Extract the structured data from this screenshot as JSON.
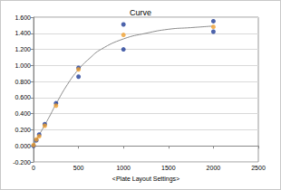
{
  "chart_data": {
    "type": "scatter",
    "title": "Curve",
    "x_label": "<Plate Layout Settings>",
    "xlim": [
      0,
      2500
    ],
    "xticks": [
      0,
      500,
      1000,
      1500,
      2000,
      2500
    ],
    "ylim": [
      -0.2,
      1.6
    ],
    "yticks": [
      {
        "value": -0.2,
        "label": "-0.200"
      },
      {
        "value": 0,
        "label": "0.000"
      },
      {
        "value": 0.2,
        "label": "0.200"
      },
      {
        "value": 0.4,
        "label": "0.400"
      },
      {
        "value": 0.6,
        "label": "0.600"
      },
      {
        "value": 0.8,
        "label": "0.800"
      },
      {
        "value": 1.0,
        "label": "1.000"
      },
      {
        "value": 1.2,
        "label": "1.200"
      },
      {
        "value": 1.4,
        "label": "1.400"
      },
      {
        "value": 1.6,
        "label": "1.600"
      }
    ],
    "grid": true,
    "series": [
      {
        "type": "line",
        "color": "#8c8c8c",
        "marker": "none",
        "line_style": "solid",
        "x": [
          0,
          50,
          100,
          175,
          250,
          375,
          500,
          625,
          750,
          1000,
          1250,
          1500,
          1750,
          2000
        ],
        "values": [
          0.0,
          0.11,
          0.21,
          0.36,
          0.52,
          0.76,
          0.95,
          1.09,
          1.2,
          1.33,
          1.4,
          1.45,
          1.47,
          1.49
        ]
      },
      {
        "type": "scatter",
        "color": "#1f3c96",
        "marker": "circle",
        "x": [
          0,
          31.25,
          62.5,
          125,
          250,
          500,
          500,
          1000,
          1000,
          2000,
          2000
        ],
        "values": [
          0.0,
          0.07,
          0.14,
          0.27,
          0.53,
          0.97,
          0.86,
          1.51,
          1.2,
          1.55,
          1.42
        ]
      },
      {
        "type": "scatter",
        "color": "#f0a030",
        "marker": "circle",
        "x": [
          0,
          31.25,
          62.5,
          125,
          250,
          500,
          1000,
          2000
        ],
        "values": [
          0.01,
          0.08,
          0.12,
          0.25,
          0.5,
          0.95,
          1.38,
          1.48
        ]
      }
    ]
  }
}
